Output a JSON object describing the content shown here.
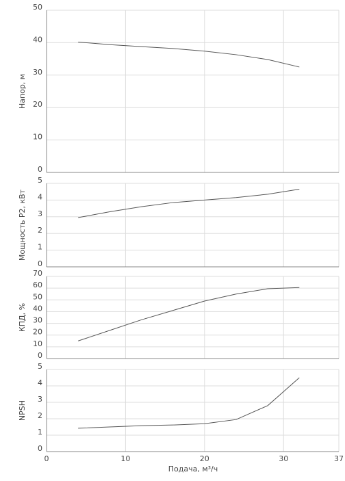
{
  "chart_data": [
    {
      "type": "line",
      "ylabel": "Напор, м",
      "ylim": [
        0,
        50
      ],
      "yticks": [
        0,
        10,
        20,
        30,
        40,
        50
      ],
      "grid": true,
      "x": [
        4,
        8,
        12,
        16,
        20,
        24,
        28,
        32
      ],
      "series": [
        {
          "color": "#555555",
          "values": [
            40.2,
            39.4,
            38.8,
            38.2,
            37.4,
            36.3,
            34.8,
            32.5
          ]
        }
      ]
    },
    {
      "type": "line",
      "ylabel": "Мощность P2, кВт",
      "ylim": [
        0,
        5
      ],
      "yticks": [
        0,
        1,
        2,
        3,
        4,
        5
      ],
      "grid": true,
      "x": [
        4,
        8,
        12,
        16,
        20,
        24,
        28,
        32
      ],
      "series": [
        {
          "color": "#555555",
          "values": [
            2.95,
            3.3,
            3.6,
            3.85,
            4.0,
            4.15,
            4.35,
            4.65
          ]
        }
      ]
    },
    {
      "type": "line",
      "ylabel": "КПД, %",
      "ylim": [
        0,
        70
      ],
      "yticks": [
        0,
        10,
        20,
        30,
        40,
        50,
        60,
        70
      ],
      "grid": true,
      "x": [
        4,
        8,
        12,
        16,
        20,
        24,
        28,
        32
      ],
      "series": [
        {
          "color": "#555555",
          "values": [
            15,
            24,
            33,
            41,
            49,
            55,
            59.5,
            60.5
          ]
        }
      ]
    },
    {
      "type": "line",
      "ylabel": "NPSH",
      "ylim": [
        0,
        5
      ],
      "yticks": [
        0,
        1,
        2,
        3,
        4,
        5
      ],
      "grid": true,
      "xlabel": "Подача, м³/ч",
      "xlim": [
        0,
        37
      ],
      "xticks": [
        0,
        10,
        20,
        30,
        37
      ],
      "x": [
        4,
        8,
        12,
        16,
        20,
        24,
        28,
        32
      ],
      "series": [
        {
          "color": "#555555",
          "values": [
            1.42,
            1.5,
            1.58,
            1.62,
            1.7,
            1.95,
            2.8,
            4.5
          ]
        }
      ]
    }
  ]
}
